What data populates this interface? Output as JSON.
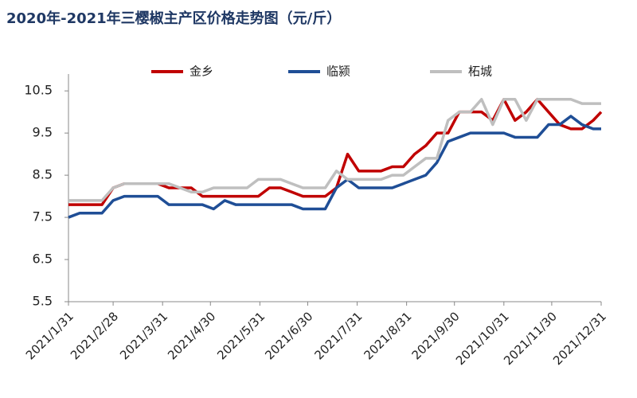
{
  "chart_data": {
    "type": "line",
    "title": "2020年-2021年三樱椒主产区价格走势图（元/斤）",
    "x": [
      "2021/1/31",
      "2021/2/7",
      "2021/2/14",
      "2021/2/21",
      "2021/2/28",
      "2021/3/7",
      "2021/3/14",
      "2021/3/21",
      "2021/3/28",
      "2021/4/4",
      "2021/4/11",
      "2021/4/18",
      "2021/4/25",
      "2021/5/2",
      "2021/5/9",
      "2021/5/16",
      "2021/5/23",
      "2021/5/30",
      "2021/6/6",
      "2021/6/13",
      "2021/6/20",
      "2021/6/27",
      "2021/7/4",
      "2021/7/11",
      "2021/7/18",
      "2021/7/25",
      "2021/8/1",
      "2021/8/8",
      "2021/8/15",
      "2021/8/22",
      "2021/8/29",
      "2021/9/5",
      "2021/9/12",
      "2021/9/19",
      "2021/9/26",
      "2021/10/3",
      "2021/10/10",
      "2021/10/17",
      "2021/10/24",
      "2021/10/31",
      "2021/11/7",
      "2021/11/14",
      "2021/11/21",
      "2021/11/28",
      "2021/12/5",
      "2021/12/12",
      "2021/12/19",
      "2021/12/26",
      "2021/12/31"
    ],
    "series": [
      {
        "name": "金乡",
        "color": "#c00000",
        "values": [
          7.8,
          7.8,
          7.8,
          7.8,
          8.2,
          8.3,
          8.3,
          8.3,
          8.3,
          8.2,
          8.2,
          8.2,
          8.0,
          8.0,
          8.0,
          8.0,
          8.0,
          8.0,
          8.2,
          8.2,
          8.1,
          8.0,
          8.0,
          8.0,
          8.2,
          9.0,
          8.6,
          8.6,
          8.6,
          8.7,
          8.7,
          9.0,
          9.2,
          9.5,
          9.5,
          10.0,
          10.0,
          10.0,
          9.8,
          10.3,
          9.8,
          10.0,
          10.3,
          10.0,
          9.7,
          9.6,
          9.6,
          9.8,
          10.0
        ]
      },
      {
        "name": "临颍",
        "color": "#1f4e96",
        "values": [
          7.5,
          7.6,
          7.6,
          7.6,
          7.9,
          8.0,
          8.0,
          8.0,
          8.0,
          7.8,
          7.8,
          7.8,
          7.8,
          7.7,
          7.9,
          7.8,
          7.8,
          7.8,
          7.8,
          7.8,
          7.8,
          7.7,
          7.7,
          7.7,
          8.2,
          8.4,
          8.2,
          8.2,
          8.2,
          8.2,
          8.3,
          8.4,
          8.5,
          8.8,
          9.3,
          9.4,
          9.5,
          9.5,
          9.5,
          9.5,
          9.4,
          9.4,
          9.4,
          9.7,
          9.7,
          9.9,
          9.7,
          9.6,
          9.6
        ]
      },
      {
        "name": "柘城",
        "color": "#bfbfbf",
        "values": [
          7.9,
          7.9,
          7.9,
          7.9,
          8.2,
          8.3,
          8.3,
          8.3,
          8.3,
          8.3,
          8.2,
          8.1,
          8.1,
          8.2,
          8.2,
          8.2,
          8.2,
          8.4,
          8.4,
          8.4,
          8.3,
          8.2,
          8.2,
          8.2,
          8.6,
          8.4,
          8.4,
          8.4,
          8.4,
          8.5,
          8.5,
          8.7,
          8.9,
          8.9,
          9.8,
          10.0,
          10.0,
          10.3,
          9.7,
          10.3,
          10.3,
          9.8,
          10.3,
          10.3,
          10.3,
          10.3,
          10.2,
          10.2,
          10.2
        ]
      }
    ],
    "xlim": [
      "2021/1/31",
      "2021/12/31"
    ],
    "xticks": [
      "2021/1/31",
      "2021/2/28",
      "2021/3/31",
      "2021/4/30",
      "2021/5/31",
      "2021/6/30",
      "2021/7/31",
      "2021/8/31",
      "2021/9/30",
      "2021/10/31",
      "2021/11/30",
      "2021/12/31"
    ],
    "ylim": [
      5.5,
      10.9
    ],
    "yticks": [
      5.5,
      6.5,
      7.5,
      8.5,
      9.5,
      10.5
    ],
    "legend": "top"
  }
}
